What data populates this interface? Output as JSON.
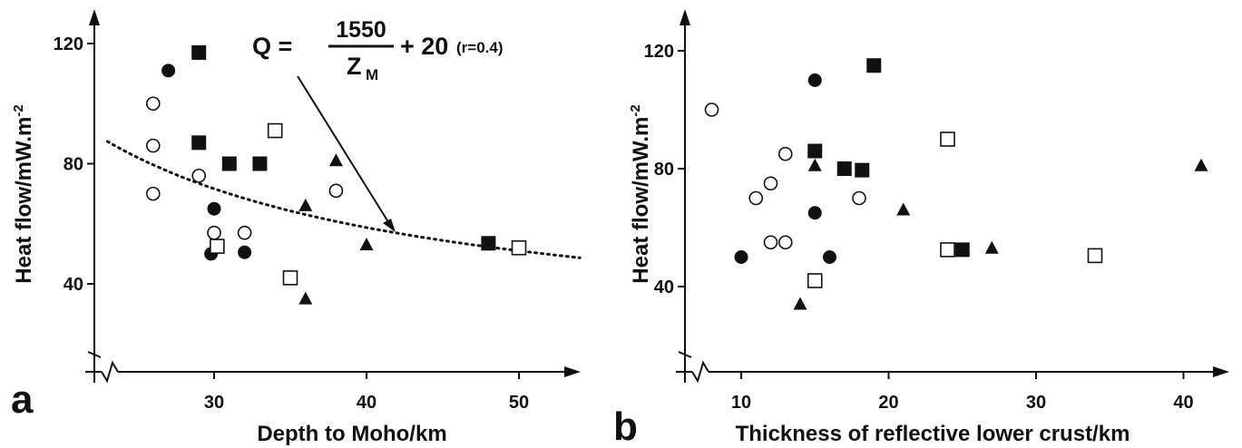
{
  "chart_data": [
    {
      "type": "scatter",
      "panel": "a",
      "xlabel": "Depth to Moho/km",
      "ylabel_main": "Heat flow/mW.m",
      "ylabel_sup": "-2",
      "xlim": [
        22,
        54
      ],
      "ylim": [
        20,
        130
      ],
      "xticks": [
        "30",
        "40",
        "50"
      ],
      "yticks": [
        "40",
        "80",
        "120"
      ],
      "equation": {
        "lhs": "Q =",
        "numerator": "1550",
        "denominator_base": "Z",
        "denominator_sub": "M",
        "rhs": "+ 20",
        "note": "(r=0.4)"
      },
      "fit_curve": {
        "formula": "Q = 1550/Z_M + 20",
        "x_range": [
          23,
          54
        ]
      },
      "series": [
        {
          "marker": "filled-circle",
          "points": [
            [
              27,
              111
            ],
            [
              30,
              65
            ],
            [
              29.8,
              50
            ],
            [
              32,
              50.5
            ]
          ]
        },
        {
          "marker": "open-circle",
          "points": [
            [
              26,
              100
            ],
            [
              26,
              86
            ],
            [
              26,
              70
            ],
            [
              29,
              76
            ],
            [
              30,
              57
            ],
            [
              32,
              57
            ],
            [
              38,
              71
            ]
          ]
        },
        {
          "marker": "filled-square",
          "points": [
            [
              29,
              117
            ],
            [
              29,
              87
            ],
            [
              31,
              80
            ],
            [
              33,
              80
            ],
            [
              48,
              53.5
            ]
          ]
        },
        {
          "marker": "open-square",
          "points": [
            [
              34,
              91
            ],
            [
              30.2,
              52.5
            ],
            [
              35,
              42
            ],
            [
              50,
              52
            ]
          ]
        },
        {
          "marker": "filled-triangle",
          "points": [
            [
              38,
              81
            ],
            [
              36,
              66
            ],
            [
              40,
              53
            ],
            [
              36,
              35
            ]
          ]
        }
      ]
    },
    {
      "type": "scatter",
      "panel": "b",
      "xlabel": "Thickness of reflective lower crust/km",
      "ylabel_main": "Heat flow/mW.m",
      "ylabel_sup": "-2",
      "xlim": [
        5,
        44
      ],
      "ylim": [
        20,
        130
      ],
      "xticks": [
        "10",
        "20",
        "30",
        "40"
      ],
      "yticks": [
        "40",
        "80",
        "120"
      ],
      "series": [
        {
          "marker": "filled-circle",
          "points": [
            [
              15,
              110
            ],
            [
              15,
              65
            ],
            [
              10,
              50
            ],
            [
              16,
              50
            ]
          ]
        },
        {
          "marker": "open-circle",
          "points": [
            [
              8,
              100
            ],
            [
              13,
              85
            ],
            [
              12,
              75
            ],
            [
              11,
              70
            ],
            [
              18,
              70
            ],
            [
              12,
              55
            ],
            [
              13,
              55
            ]
          ]
        },
        {
          "marker": "filled-square",
          "points": [
            [
              19,
              115
            ],
            [
              15,
              86
            ],
            [
              17,
              80
            ],
            [
              18.2,
              79.5
            ],
            [
              25,
              52.5
            ]
          ]
        },
        {
          "marker": "open-square",
          "points": [
            [
              24,
              90
            ],
            [
              24,
              52.5
            ],
            [
              15,
              42
            ],
            [
              34,
              50.5
            ]
          ]
        },
        {
          "marker": "filled-triangle",
          "points": [
            [
              15,
              81
            ],
            [
              21,
              66
            ],
            [
              27,
              53
            ],
            [
              41.2,
              81
            ],
            [
              14,
              34
            ]
          ]
        }
      ]
    }
  ]
}
